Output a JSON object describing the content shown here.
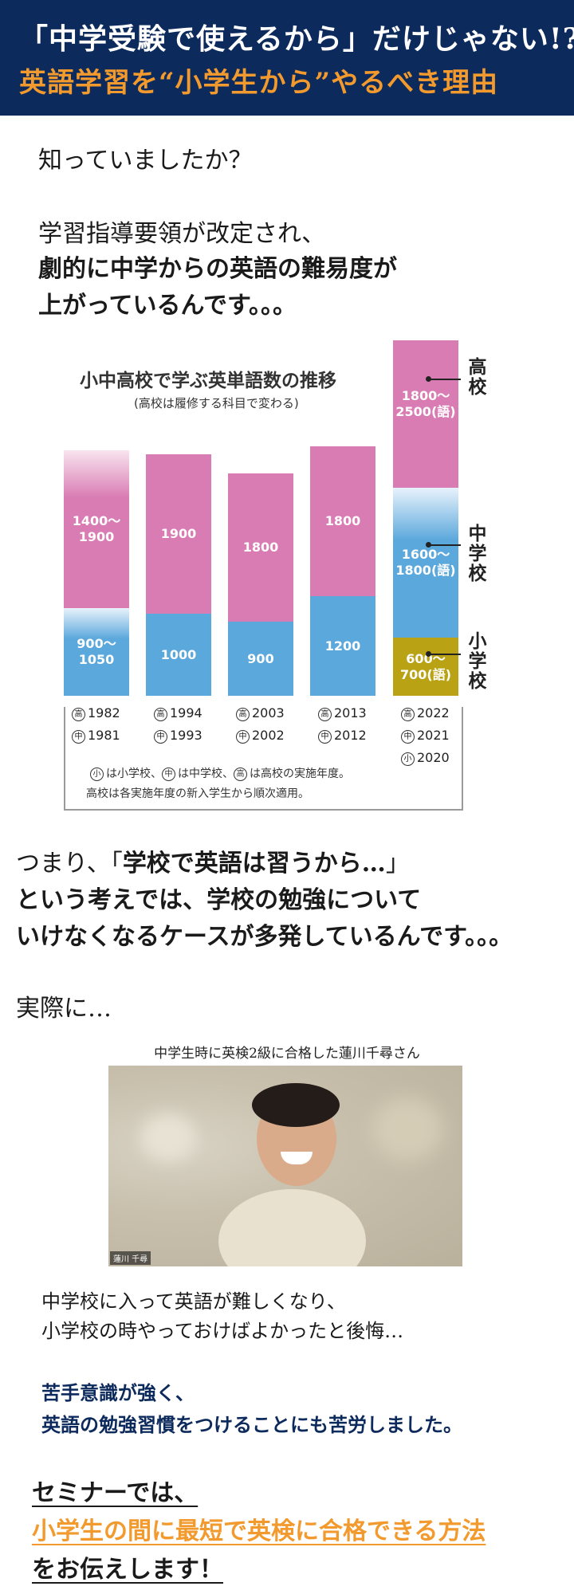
{
  "header": {
    "line1": "「中学受験で使えるから」だけじゃない!?",
    "line2": "英語学習を“小学生から”やるべき理由"
  },
  "intro": {
    "q": "知っていましたか？",
    "l1": "学習指導要領が改定され、",
    "l2": "劇的に中学からの英語の難易度が",
    "l3": "上がっているんです。。。"
  },
  "chart_data": {
    "type": "bar",
    "title": "小中高校で学ぶ英単語数の推移",
    "subtitle": "(高校は履修する科目で変わる)",
    "levels": [
      "高校",
      "中学校",
      "小学校"
    ],
    "bars": [
      {
        "high": "1982",
        "mid": "1981",
        "elem": "",
        "segments": [
          {
            "level": "中学校",
            "label": "900〜\n1050",
            "min": 900,
            "max": 1050
          },
          {
            "level": "高校",
            "label": "1400〜\n1900",
            "min": 1400,
            "max": 1900
          }
        ]
      },
      {
        "high": "1994",
        "mid": "1993",
        "elem": "",
        "segments": [
          {
            "level": "中学校",
            "label": "1000",
            "min": 1000,
            "max": 1000
          },
          {
            "level": "高校",
            "label": "1900",
            "min": 1900,
            "max": 1900
          }
        ]
      },
      {
        "high": "2003",
        "mid": "2002",
        "elem": "",
        "segments": [
          {
            "level": "中学校",
            "label": "900",
            "min": 900,
            "max": 900
          },
          {
            "level": "高校",
            "label": "1800",
            "min": 1800,
            "max": 1800
          }
        ]
      },
      {
        "high": "2013",
        "mid": "2012",
        "elem": "",
        "segments": [
          {
            "level": "中学校",
            "label": "1200",
            "min": 1200,
            "max": 1200
          },
          {
            "level": "高校",
            "label": "1800",
            "min": 1800,
            "max": 1800
          }
        ]
      },
      {
        "high": "2022",
        "mid": "2021",
        "elem": "2020",
        "segments": [
          {
            "level": "小学校",
            "label": "600〜\n700(語)",
            "min": 600,
            "max": 700
          },
          {
            "level": "中学校",
            "label": "1600〜\n1800(語)",
            "min": 1600,
            "max": 1800
          },
          {
            "level": "高校",
            "label": "1800〜\n2500(語)",
            "min": 1800,
            "max": 2500
          }
        ]
      }
    ],
    "year_markers": {
      "high": "高",
      "mid": "中",
      "elem": "小"
    },
    "note1_parts": [
      "小",
      "は小学校、",
      "中",
      "は中学校、",
      "高",
      "は高校の実施年度。"
    ],
    "note2": "高校は各実施年度の新入学生から順次適用。",
    "colors": {
      "high": "#d97cb3",
      "mid": "#5ba8dc",
      "elem": "#b9a213"
    }
  },
  "section2": {
    "l1a": "つまり、「",
    "l1b": "学校で英語は習うから…",
    "l1c": "」",
    "l2": "という考えでは、学校の勉強について",
    "l3": "いけなくなるケースが多発しているんです。。。",
    "actual": "実際に…"
  },
  "testimonial": {
    "caption": "中学生時に英検2級に合格した蓮川千尋さん",
    "nametag": "蓮川 千尋",
    "l1": "中学校に入って英語が難しくなり、",
    "l2": "小学校の時やっておけばよかったと後悔…",
    "l3": "苦手意識が強く、",
    "l4": "英語の勉強習慣をつけることにも苦労しました。"
  },
  "seminar": {
    "l1": "セミナーでは、",
    "l2": "小学生の間に最短で英検に合格できる方法",
    "l3": "をお伝えします！"
  },
  "colors": {
    "navy": "#0d2a5c",
    "orange": "#f29a2e"
  }
}
